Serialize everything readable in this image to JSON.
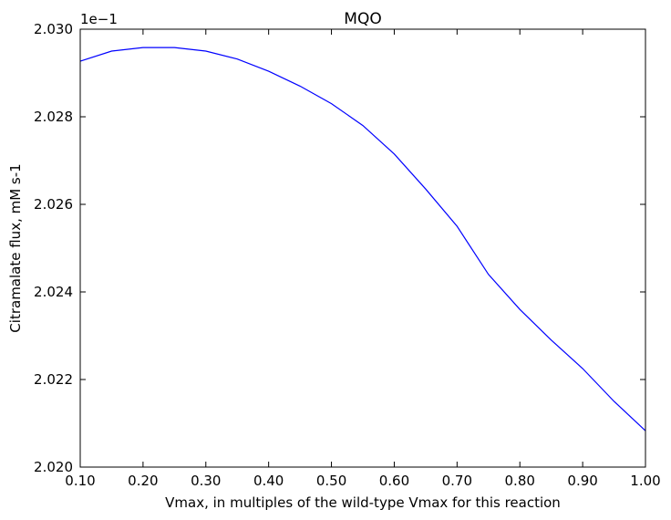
{
  "chart_data": {
    "type": "line",
    "title": "MQO",
    "xlabel": "Vmax, in multiples of the wild-type Vmax for this reaction",
    "ylabel": "Citramalate flux, mM s-1",
    "offset_label": "1e−1",
    "x": [
      0.1,
      0.15,
      0.2,
      0.25,
      0.3,
      0.35,
      0.4,
      0.45,
      0.5,
      0.55,
      0.6,
      0.65,
      0.7,
      0.75,
      0.8,
      0.85,
      0.9,
      0.95,
      1.0
    ],
    "series": [
      {
        "name": "MQO",
        "color": "#0000ff",
        "values": [
          2.02927,
          2.0295,
          2.02958,
          2.02958,
          2.0295,
          2.02932,
          2.02904,
          2.0287,
          2.0283,
          2.0278,
          2.02715,
          2.02635,
          2.0255,
          2.0244,
          2.0236,
          2.0229,
          2.02225,
          2.0215,
          2.02083
        ]
      }
    ],
    "xlim": [
      0.1,
      1.0
    ],
    "xticks": [
      {
        "value": 0.1,
        "label": "0.10"
      },
      {
        "value": 0.2,
        "label": "0.20"
      },
      {
        "value": 0.3,
        "label": "0.30"
      },
      {
        "value": 0.4,
        "label": "0.40"
      },
      {
        "value": 0.5,
        "label": "0.50"
      },
      {
        "value": 0.6,
        "label": "0.60"
      },
      {
        "value": 0.7,
        "label": "0.70"
      },
      {
        "value": 0.8,
        "label": "0.80"
      },
      {
        "value": 0.9,
        "label": "0.90"
      },
      {
        "value": 1.0,
        "label": "1.00"
      }
    ],
    "ylim": [
      2.02,
      2.03
    ],
    "yticks": [
      {
        "value": 2.02,
        "label": "2.020"
      },
      {
        "value": 2.022,
        "label": "2.022"
      },
      {
        "value": 2.024,
        "label": "2.024"
      },
      {
        "value": 2.026,
        "label": "2.026"
      },
      {
        "value": 2.028,
        "label": "2.028"
      },
      {
        "value": 2.03,
        "label": "2.030"
      }
    ],
    "grid": false
  }
}
